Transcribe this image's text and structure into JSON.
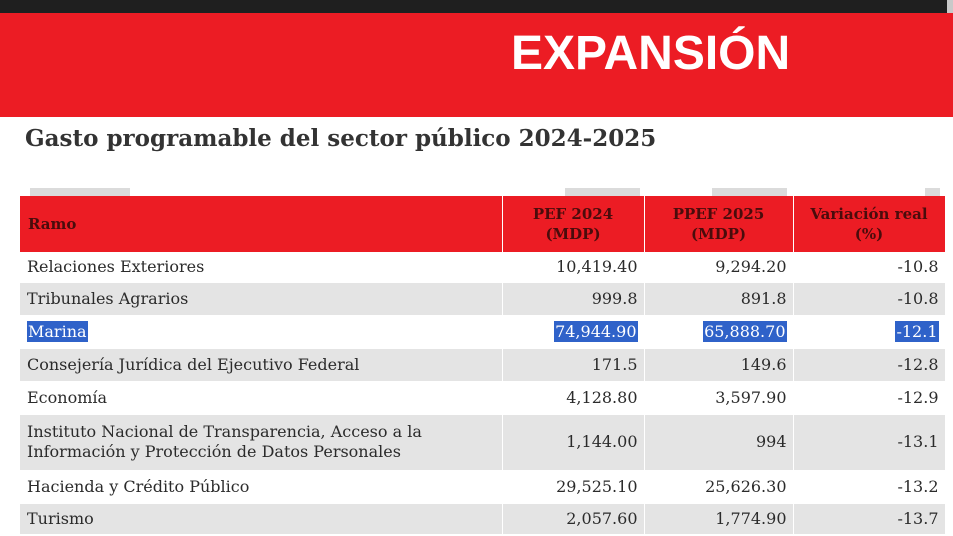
{
  "brand": {
    "logo_text": "EXPANSIÓN"
  },
  "title": "Gasto programable del sector público 2024-2025",
  "table": {
    "headers": {
      "ramo": "Ramo",
      "pef2024": "PEF 2024 (MDP)",
      "ppef2025": "PPEF 2025 (MDP)",
      "variacion": "Variación real (%)"
    },
    "rows": [
      {
        "ramo": "Relaciones Exteriores",
        "pef2024": "10,419.40",
        "ppef2025": "9,294.20",
        "variacion": "-10.8"
      },
      {
        "ramo": "Tribunales Agrarios",
        "pef2024": "999.8",
        "ppef2025": "891.8",
        "variacion": "-10.8"
      },
      {
        "ramo": "Marina",
        "pef2024": "74,944.90",
        "ppef2025": "65,888.70",
        "variacion": "-12.1"
      },
      {
        "ramo": "Consejería Jurídica del Ejecutivo Federal",
        "pef2024": "171.5",
        "ppef2025": "149.6",
        "variacion": "-12.8"
      },
      {
        "ramo": "Economía",
        "pef2024": "4,128.80",
        "ppef2025": "3,597.90",
        "variacion": "-12.9"
      },
      {
        "ramo": "Instituto Nacional de Transparencia, Acceso a la Información y Protección de Datos Personales",
        "pef2024": "1,144.00",
        "ppef2025": "994",
        "variacion": "-13.1"
      },
      {
        "ramo": "Hacienda y Crédito Público",
        "pef2024": "29,525.10",
        "ppef2025": "25,626.30",
        "variacion": "-13.2"
      },
      {
        "ramo": "Turismo",
        "pef2024": "2,057.60",
        "ppef2025": "1,774.90",
        "variacion": "-13.7"
      }
    ]
  },
  "colors": {
    "brand_red": "#ec1c24",
    "selection_blue": "#2f62c9",
    "row_alt": "#e4e4e4"
  }
}
